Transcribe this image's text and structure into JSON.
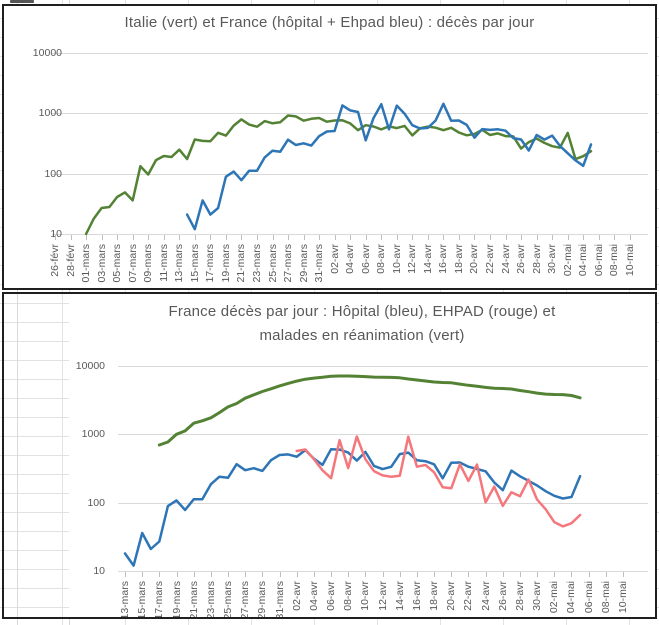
{
  "chart_data": [
    {
      "type": "line",
      "title": "Italie (vert) et France (hôpital + Ehpad bleu) : décès par jour",
      "y_axis": {
        "scale": "log",
        "min": 10,
        "max": 10000,
        "tick_labels": [
          "10000",
          "1000",
          "100",
          "10"
        ]
      },
      "x_tick_labels": [
        "26-févr",
        "28-févr",
        "01-mars",
        "03-mars",
        "05-mars",
        "07-mars",
        "09-mars",
        "11-mars",
        "13-mars",
        "15-mars",
        "17-mars",
        "19-mars",
        "21-mars",
        "23-mars",
        "25-mars",
        "27-mars",
        "29-mars",
        "31-mars",
        "02-avr",
        "04-avr",
        "06-avr",
        "08-avr",
        "10-avr",
        "12-avr",
        "14-avr",
        "16-avr",
        "18-avr",
        "20-avr",
        "22-avr",
        "24-avr",
        "26-avr",
        "28-avr",
        "30-avr",
        "02-mai",
        "04-mai",
        "06-mai",
        "08-mai",
        "10-mai"
      ],
      "grid": "horizontal-log-decades",
      "legend": "none (colors referenced in title)",
      "series": [
        {
          "id": "italie",
          "name": "Italie décès par jour (vert)",
          "color": "#548235",
          "first_date": "01-mars",
          "start_day_offset": 4,
          "values": [
            10,
            18,
            27,
            28,
            41,
            49,
            36,
            133,
            97,
            168,
            196,
            189,
            250,
            175,
            368,
            349,
            345,
            475,
            427,
            627,
            793,
            651,
            601,
            743,
            683,
            712,
            919,
            889,
            756,
            812,
            837,
            727,
            760,
            766,
            681,
            525,
            636,
            604,
            542,
            610,
            570,
            619,
            431,
            566,
            602,
            578,
            525,
            575,
            482,
            433,
            454,
            534,
            437,
            464,
            420,
            415,
            260,
            333,
            382,
            323,
            285,
            269,
            474,
            174,
            195,
            236
          ]
        },
        {
          "id": "france-total",
          "name": "France hôpital + Ehpad décès par jour (bleu)",
          "color": "#2e75b6",
          "first_date": "14-mars",
          "start_day_offset": 17,
          "values": [
            21,
            12,
            36,
            21,
            27,
            89,
            108,
            78,
            112,
            112,
            186,
            240,
            231,
            365,
            299,
            319,
            292,
            418,
            499,
            509,
            1355,
            1120,
            1053,
            357,
            833,
            1417,
            541,
            1341,
            987,
            635,
            561,
            574,
            762,
            1438,
            753,
            761,
            642,
            395,
            547,
            531,
            544,
            516,
            389,
            369,
            242,
            437,
            367,
            427,
            289,
            218,
            166,
            135,
            306
          ]
        }
      ]
    },
    {
      "type": "line",
      "title": "France décès par jour : Hôpital  (bleu),  EHPAD (rouge) et malades en réanimation (vert)",
      "title_line1": "France décès par jour : Hôpital  (bleu),  EHPAD (rouge) et",
      "title_line2": "malades en réanimation (vert)",
      "y_axis": {
        "scale": "log",
        "min": 10,
        "max": 10000,
        "tick_labels": [
          "10000",
          "1000",
          "100",
          "10"
        ]
      },
      "x_tick_labels": [
        "13-mars",
        "15-mars",
        "17-mars",
        "19-mars",
        "21-mars",
        "23-mars",
        "25-mars",
        "27-mars",
        "29-mars",
        "31-mars",
        "02-avr",
        "04-avr",
        "06-avr",
        "08-avr",
        "10-avr",
        "12-avr",
        "14-avr",
        "16-avr",
        "18-avr",
        "20-avr",
        "22-avr",
        "24-avr",
        "26-avr",
        "28-avr",
        "30-avr",
        "02-mai",
        "04-mai",
        "06-mai",
        "08-mai",
        "10-mai"
      ],
      "grid": "horizontal-log-decades",
      "legend": "none (colors referenced in title)",
      "series": [
        {
          "id": "reanimation",
          "name": "Malades en réanimation (vert)",
          "color": "#548235",
          "first_date": "17-mars",
          "start_day_offset": 4,
          "values": [
            699,
            771,
            1002,
            1122,
            1453,
            1575,
            1746,
            2082,
            2516,
            2827,
            3375,
            3787,
            4236,
            4632,
            5107,
            5565,
            6017,
            6399,
            6662,
            6838,
            7072,
            7131,
            7148,
            7066,
            7004,
            6883,
            6845,
            6821,
            6730,
            6457,
            6248,
            6027,
            5833,
            5744,
            5683,
            5433,
            5218,
            5053,
            4870,
            4725,
            4682,
            4608,
            4387,
            4207,
            4019,
            3878,
            3827,
            3819,
            3696,
            3430
          ]
        },
        {
          "id": "hopital",
          "name": "Hôpital décès par jour (bleu)",
          "color": "#2e75b6",
          "first_date": "13-mars",
          "start_day_offset": 0,
          "values": [
            18,
            12,
            36,
            21,
            27,
            89,
            108,
            78,
            112,
            112,
            186,
            240,
            231,
            365,
            299,
            319,
            292,
            418,
            499,
            509,
            471,
            588,
            441,
            357,
            605,
            597,
            541,
            412,
            554,
            345,
            310,
            335,
            514,
            541,
            417,
            405,
            364,
            227,
            384,
            387,
            336,
            311,
            288,
            198,
            152,
            295,
            243,
            209,
            178,
            147,
            126,
            115,
            121,
            244
          ]
        },
        {
          "id": "ehpad",
          "name": "EHPAD décès par jour (rouge)",
          "color": "#f4777c",
          "first_date": "02-avr",
          "start_day_offset": 20,
          "values": [
            570,
            600,
            433,
            298,
            228,
            820,
            321,
            929,
            433,
            290,
            251,
            239,
            248,
            924,
            336,
            356,
            278,
            168,
            163,
            364,
            208,
            360,
            101,
            171,
            90,
            142,
            124,
            218,
            111,
            80,
            52,
            45,
            50,
            66
          ]
        }
      ]
    }
  ]
}
